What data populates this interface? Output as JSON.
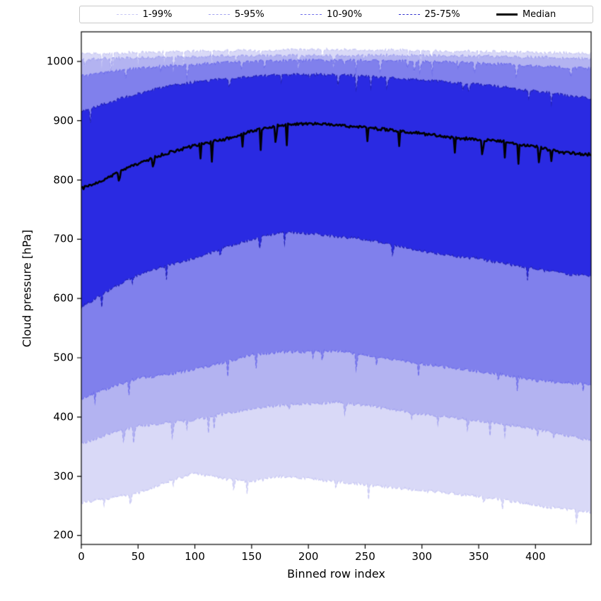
{
  "chart_data": {
    "type": "area",
    "title": "",
    "xlabel": "Binned row index",
    "ylabel": "Cloud pressure [hPa]",
    "xlim": [
      0,
      449
    ],
    "ylim": [
      185,
      1050
    ],
    "grid": false,
    "legend_position": "top",
    "x_ticks": [
      0,
      50,
      100,
      150,
      200,
      250,
      300,
      350,
      400
    ],
    "y_ticks": [
      200,
      300,
      400,
      500,
      600,
      700,
      800,
      900,
      1000
    ],
    "legend": [
      {
        "label": "1-99%",
        "color": "#c7c7f4",
        "style": "dashed",
        "weight": 1.5
      },
      {
        "label": "5-95%",
        "color": "#a3a3f0",
        "style": "dashed",
        "weight": 1.5
      },
      {
        "label": "10-90%",
        "color": "#6e6eea",
        "style": "dashed",
        "weight": 1.5
      },
      {
        "label": "25-75%",
        "color": "#3232cf",
        "style": "dashed",
        "weight": 1.5
      },
      {
        "label": "Median",
        "color": "#000000",
        "style": "solid",
        "weight": 3
      }
    ],
    "x": [
      0,
      25,
      50,
      75,
      100,
      125,
      150,
      175,
      200,
      225,
      250,
      275,
      300,
      325,
      350,
      375,
      400,
      425,
      449
    ],
    "bands": [
      {
        "name": "1-99%",
        "fill": "#d9d9f7",
        "edge": "#c7c7f4",
        "upper": [
          1013,
          1014,
          1015,
          1016,
          1017,
          1018,
          1018,
          1019,
          1020,
          1020,
          1019,
          1019,
          1018,
          1017,
          1017,
          1016,
          1015,
          1014,
          1013
        ],
        "lower": [
          255,
          263,
          272,
          290,
          305,
          296,
          291,
          300,
          296,
          291,
          286,
          281,
          276,
          271,
          266,
          259,
          251,
          245,
          240
        ]
      },
      {
        "name": "5-95%",
        "fill": "#b3b3f1",
        "edge": "#a3a3f0",
        "upper": [
          1003,
          1005,
          1006,
          1007,
          1008,
          1009,
          1009,
          1010,
          1010,
          1010,
          1010,
          1010,
          1010,
          1009,
          1009,
          1008,
          1007,
          1006,
          1005
        ],
        "lower": [
          355,
          372,
          385,
          390,
          395,
          405,
          415,
          420,
          422,
          425,
          420,
          412,
          405,
          400,
          394,
          387,
          380,
          370,
          360
        ]
      },
      {
        "name": "10-90%",
        "fill": "#8080ec",
        "edge": "#6e6eea",
        "upper": [
          975,
          983,
          988,
          992,
          995,
          998,
          1000,
          1001,
          1002,
          1002,
          1002,
          1001,
          1000,
          999,
          997,
          995,
          992,
          990,
          988
        ],
        "lower": [
          430,
          450,
          465,
          472,
          480,
          492,
          505,
          510,
          510,
          512,
          505,
          497,
          490,
          483,
          477,
          470,
          462,
          458,
          455
        ]
      },
      {
        "name": "25-75%",
        "fill": "#2a2ae2",
        "edge": "#2323b4",
        "upper": [
          915,
          932,
          945,
          958,
          965,
          970,
          975,
          977,
          978,
          977,
          975,
          972,
          969,
          965,
          961,
          956,
          950,
          943,
          937
        ],
        "lower": [
          585,
          615,
          640,
          655,
          668,
          685,
          700,
          712,
          710,
          705,
          700,
          690,
          680,
          673,
          667,
          658,
          650,
          642,
          638
        ]
      }
    ],
    "median": {
      "name": "Median",
      "color": "#000000",
      "values": [
        785,
        805,
        828,
        845,
        858,
        868,
        882,
        893,
        895,
        893,
        888,
        884,
        878,
        872,
        868,
        864,
        856,
        846,
        843
      ]
    }
  }
}
